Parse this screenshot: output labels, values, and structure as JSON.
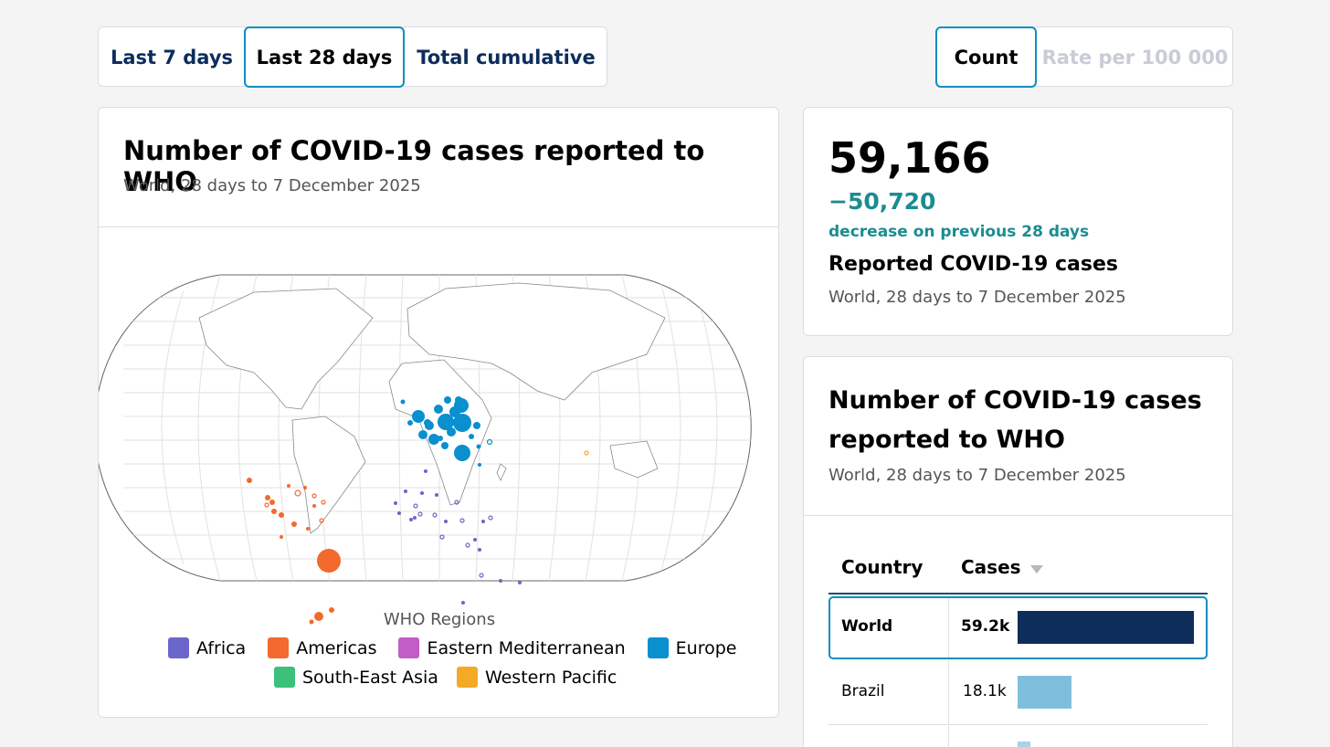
{
  "period_tabs": [
    "Last 7 days",
    "Last 28 days",
    "Total cumulative"
  ],
  "measure_tabs": [
    "Count",
    "Rate per 100 000"
  ],
  "map_card": {
    "title": "Number of COVID-19 cases reported to WHO",
    "subtitle": "World, 28 days to 7 December 2025",
    "legend_title": "WHO Regions",
    "regions": [
      {
        "name": "Africa",
        "color": "#6b66c9"
      },
      {
        "name": "Americas",
        "color": "#f26a2e"
      },
      {
        "name": "Eastern Mediterranean",
        "color": "#c25cc6"
      },
      {
        "name": "Europe",
        "color": "#0a8fcf"
      },
      {
        "name": "South-East Asia",
        "color": "#3cc07a"
      },
      {
        "name": "Western Pacific",
        "color": "#f3aa25"
      }
    ]
  },
  "summary": {
    "total": "59,166",
    "change": "−50,720",
    "change_text": "decrease on previous 28 days",
    "label": "Reported COVID-19 cases",
    "subtitle": "World, 28 days to 7 December 2025"
  },
  "table_card": {
    "title_line1": "Number of COVID-19 cases",
    "title_line2": "reported to WHO",
    "subtitle": "World, 28 days to 7 December 2025",
    "col_country": "Country",
    "col_cases": "Cases",
    "rows": [
      {
        "country": "World",
        "cases": "59.2k",
        "value": 59166,
        "color": "#0d2d5b"
      },
      {
        "country": "Brazil",
        "cases": "18.1k",
        "value": 18100,
        "color": "#80bfdc"
      },
      {
        "country": "",
        "cases": "",
        "value": 4400,
        "color": "#a7d3e8"
      }
    ]
  },
  "colors": {
    "accent": "#0a8fbf",
    "change": "#1b8c91",
    "navy": "#0d2d5b"
  }
}
